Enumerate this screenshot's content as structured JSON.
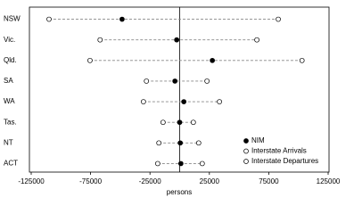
{
  "chart_data": {
    "type": "dot",
    "categories": [
      "NSW",
      "Vic.",
      "Qld.",
      "SA",
      "WA",
      "Tas.",
      "NT",
      "ACT"
    ],
    "series": [
      {
        "name": "NIM",
        "color": "#000000",
        "values": [
          -48500,
          -2500,
          27500,
          -4000,
          3500,
          0,
          500,
          1000
        ]
      },
      {
        "name": "Interstate Arrivals",
        "color": "#ffffff",
        "values": [
          83000,
          65000,
          103000,
          23000,
          33500,
          11500,
          16000,
          19000
        ]
      },
      {
        "name": "Interstate Departures",
        "color": "#ffffff",
        "values": [
          -110000,
          -67000,
          -75500,
          -28000,
          -30500,
          -14000,
          -17500,
          -18500
        ]
      }
    ],
    "xlabel": "persons",
    "xlim": [
      -125000,
      125000
    ],
    "xticks": [
      -125000,
      -75000,
      -25000,
      25000,
      75000,
      125000
    ],
    "legend": "lower right"
  }
}
